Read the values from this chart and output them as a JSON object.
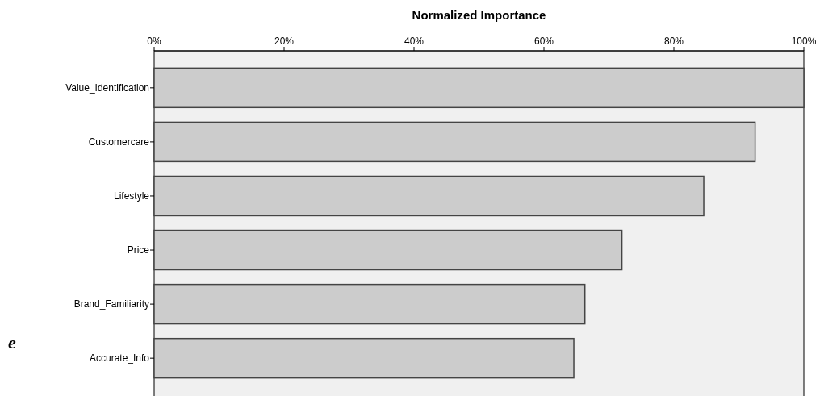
{
  "chart_data": {
    "type": "bar",
    "orientation": "horizontal",
    "xlabel": "Normalized Importance",
    "categories": [
      "Value_Identification",
      "Customercare",
      "Lifestyle",
      "Price",
      "Brand_Familiarity",
      "Accurate_Info"
    ],
    "values": [
      100,
      92.5,
      84.6,
      72.0,
      66.3,
      64.6
    ],
    "color": "#cccccc",
    "xlim": [
      0,
      100
    ],
    "xticks": [
      {
        "value": 0,
        "label": "0%"
      },
      {
        "value": 20,
        "label": "20%"
      },
      {
        "value": 40,
        "label": "40%"
      },
      {
        "value": 60,
        "label": "60%"
      },
      {
        "value": 80,
        "label": "80%"
      },
      {
        "value": 100,
        "label": "100%"
      }
    ],
    "grid": false,
    "annotations": [
      "e"
    ]
  }
}
